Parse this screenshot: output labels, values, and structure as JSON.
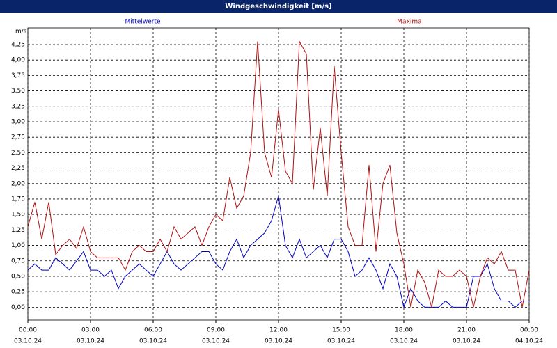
{
  "chart_data": {
    "type": "line",
    "title": "Windgeschwindigkeit [m/s]",
    "y_unit": "m/s",
    "x": [
      0,
      20,
      40,
      60,
      80,
      100,
      120,
      140,
      160,
      180,
      200,
      220,
      240,
      260,
      280,
      300,
      320,
      340,
      360,
      380,
      400,
      420,
      440,
      460,
      480,
      500,
      520,
      540,
      560,
      580,
      600,
      620,
      640,
      660,
      680,
      700,
      720,
      740,
      760,
      780,
      800,
      820,
      840,
      860,
      880,
      900,
      920,
      940,
      960,
      980,
      1000,
      1020,
      1040,
      1060,
      1080,
      1100,
      1120,
      1140,
      1160,
      1180,
      1200,
      1220,
      1240,
      1260,
      1280,
      1300,
      1320,
      1340,
      1360,
      1380,
      1400,
      1420,
      1440
    ],
    "series": [
      {
        "name": "Mittelwerte",
        "color": "#0000c0",
        "values": [
          0.6,
          0.7,
          0.6,
          0.6,
          0.8,
          0.7,
          0.6,
          0.75,
          0.9,
          0.6,
          0.6,
          0.5,
          0.6,
          0.3,
          0.5,
          0.6,
          0.7,
          0.6,
          0.5,
          0.7,
          0.9,
          0.7,
          0.6,
          0.7,
          0.8,
          0.9,
          0.9,
          0.7,
          0.6,
          0.9,
          1.1,
          0.8,
          1.0,
          1.1,
          1.2,
          1.4,
          1.8,
          1.0,
          0.8,
          1.1,
          0.8,
          0.9,
          1.0,
          0.8,
          1.1,
          1.1,
          0.9,
          0.5,
          0.6,
          0.8,
          0.6,
          0.3,
          0.7,
          0.5,
          0.0,
          0.3,
          0.1,
          0.0,
          0.0,
          0.0,
          0.1,
          0.0,
          0.0,
          0.0,
          0.5,
          0.5,
          0.7,
          0.3,
          0.1,
          0.1,
          0.0,
          0.1,
          0.1
        ]
      },
      {
        "name": "Maxima",
        "color": "#b01010",
        "values": [
          1.3,
          1.7,
          1.1,
          1.7,
          0.85,
          1.0,
          1.1,
          0.95,
          1.3,
          0.9,
          0.8,
          0.8,
          0.8,
          0.8,
          0.6,
          0.9,
          1.0,
          0.9,
          0.9,
          1.1,
          0.9,
          1.3,
          1.1,
          1.2,
          1.3,
          1.0,
          1.3,
          1.5,
          1.4,
          2.1,
          1.6,
          1.8,
          2.5,
          4.3,
          2.5,
          2.1,
          3.2,
          2.2,
          2.0,
          4.3,
          4.1,
          1.9,
          2.9,
          1.8,
          3.9,
          2.5,
          1.3,
          1.0,
          1.0,
          2.3,
          0.9,
          2.0,
          2.3,
          1.2,
          0.7,
          0.0,
          0.6,
          0.4,
          0.0,
          0.6,
          0.5,
          0.5,
          0.6,
          0.5,
          0.0,
          0.5,
          0.8,
          0.7,
          0.9,
          0.6,
          0.6,
          0.0,
          0.6
        ]
      }
    ],
    "xlim": [
      0,
      1440
    ],
    "xticks": [
      {
        "value": 0,
        "label": "00:00",
        "date": "03.10.24"
      },
      {
        "value": 180,
        "label": "03:00",
        "date": "03.10.24"
      },
      {
        "value": 360,
        "label": "06:00",
        "date": "03.10.24"
      },
      {
        "value": 540,
        "label": "09:00",
        "date": "03.10.24"
      },
      {
        "value": 720,
        "label": "12:00",
        "date": "03.10.24"
      },
      {
        "value": 900,
        "label": "15:00",
        "date": "03.10.24"
      },
      {
        "value": 1080,
        "label": "18:00",
        "date": "03.10.24"
      },
      {
        "value": 1260,
        "label": "21:00",
        "date": "03.10.24"
      },
      {
        "value": 1440,
        "label": "00:00",
        "date": "04.10.24"
      }
    ],
    "ylim": [
      -0.21,
      4.52
    ],
    "yticks": [
      {
        "value": 0,
        "label": "0,00"
      },
      {
        "value": 0.25,
        "label": "0,25"
      },
      {
        "value": 0.5,
        "label": "0,50"
      },
      {
        "value": 0.75,
        "label": "0,75"
      },
      {
        "value": 1,
        "label": "1,00"
      },
      {
        "value": 1.25,
        "label": "1,25"
      },
      {
        "value": 1.5,
        "label": "1,50"
      },
      {
        "value": 1.75,
        "label": "1,75"
      },
      {
        "value": 2,
        "label": "2,00"
      },
      {
        "value": 2.25,
        "label": "2,25"
      },
      {
        "value": 2.5,
        "label": "2,50"
      },
      {
        "value": 2.75,
        "label": "2,75"
      },
      {
        "value": 3,
        "label": "3,00"
      },
      {
        "value": 3.25,
        "label": "3,25"
      },
      {
        "value": 3.5,
        "label": "3,50"
      },
      {
        "value": 3.75,
        "label": "3,75"
      },
      {
        "value": 4,
        "label": "4,00"
      },
      {
        "value": 4.25,
        "label": "4,25"
      }
    ],
    "grid": true
  }
}
